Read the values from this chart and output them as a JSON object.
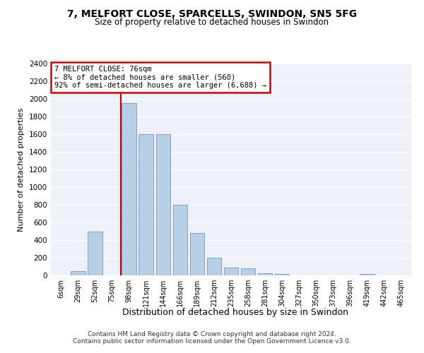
{
  "title1": "7, MELFORT CLOSE, SPARCELLS, SWINDON, SN5 5FG",
  "title2": "Size of property relative to detached houses in Swindon",
  "xlabel": "Distribution of detached houses by size in Swindon",
  "ylabel": "Number of detached properties",
  "categories": [
    "6sqm",
    "29sqm",
    "52sqm",
    "75sqm",
    "98sqm",
    "121sqm",
    "144sqm",
    "166sqm",
    "189sqm",
    "212sqm",
    "235sqm",
    "258sqm",
    "281sqm",
    "304sqm",
    "327sqm",
    "350sqm",
    "373sqm",
    "396sqm",
    "419sqm",
    "442sqm",
    "465sqm"
  ],
  "values": [
    0,
    50,
    500,
    0,
    1950,
    1600,
    1600,
    800,
    480,
    200,
    85,
    80,
    25,
    20,
    0,
    0,
    0,
    0,
    20,
    0,
    0
  ],
  "bar_color": "#b8cfe8",
  "bar_edge_color": "#6699cc",
  "property_line_color": "#cc0000",
  "annotation_text": "7 MELFORT CLOSE: 76sqm\n← 8% of detached houses are smaller (560)\n92% of semi-detached houses are larger (6,688) →",
  "annotation_box_color": "#cc0000",
  "ylim": [
    0,
    2400
  ],
  "yticks": [
    0,
    200,
    400,
    600,
    800,
    1000,
    1200,
    1400,
    1600,
    1800,
    2000,
    2200,
    2400
  ],
  "bg_color": "#eef2f8",
  "grid_color": "#ffffff",
  "footer1": "Contains HM Land Registry data © Crown copyright and database right 2024.",
  "footer2": "Contains public sector information licensed under the Open Government Licence v3.0."
}
